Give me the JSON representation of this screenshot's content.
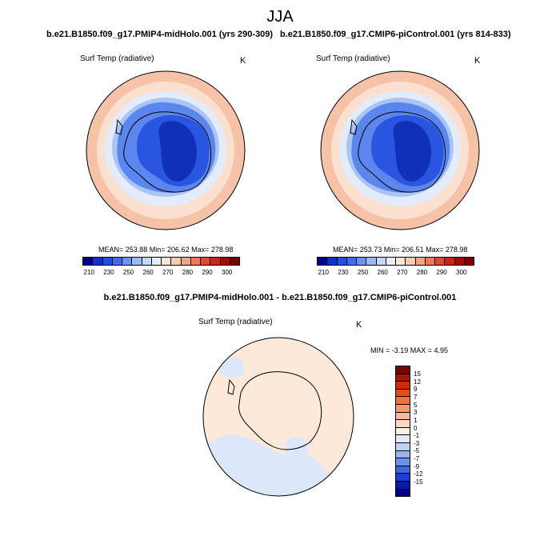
{
  "main_title": "JJA",
  "panels": [
    {
      "run_title": "b.e21.B1850.f09_g17.PMIP4-midHolo.001 (yrs 290-309)",
      "label": "Surf Temp (radiative)",
      "units": "K",
      "stats": "MEAN= 253.88  Min= 206.62  Max= 278.98"
    },
    {
      "run_title": "b.e21.B1850.f09_g17.CMIP6-piControl.001 (yrs 814-833)",
      "label": "Surf Temp (radiative)",
      "units": "K",
      "stats": "MEAN= 253.73  Min= 206.51  Max= 278.98"
    }
  ],
  "diff_panel": {
    "run_title": "b.e21.B1850.f09_g17.PMIP4-midHolo.001 - b.e21.B1850.f09_g17.CMIP6-piControl.001",
    "label": "Surf Temp (radiative)",
    "units": "K",
    "stats": "MIN =  -3.19 MAX =   4.95"
  },
  "abs_colorbar": {
    "colors": [
      "#00008b",
      "#1030c8",
      "#1f51e0",
      "#3c6ef0",
      "#6b94f5",
      "#9bb8f8",
      "#c4d6f9",
      "#e6eefc",
      "#fde6d6",
      "#fbcbb0",
      "#f5a582",
      "#ec7a58",
      "#dd4a2d",
      "#c8260f",
      "#a00e05",
      "#7a0000"
    ],
    "tick_labels": [
      "210",
      "230",
      "250",
      "260",
      "270",
      "280",
      "290",
      "300"
    ]
  },
  "diff_colorbar": {
    "colors": [
      "#7a0000",
      "#a8140a",
      "#d02a10",
      "#ea4a1c",
      "#f56e3e",
      "#f79868",
      "#f8bc96",
      "#fad8c2",
      "#fdeee3",
      "#deebfb",
      "#bcd2f6",
      "#93b3f1",
      "#6b92ea",
      "#3f66e0",
      "#1a3cd0",
      "#0a1aa8",
      "#00008b"
    ],
    "tick_labels": [
      "15",
      "12",
      "9",
      "7",
      "5",
      "3",
      "1",
      "0",
      "-1",
      "-3",
      "-5",
      "-7",
      "-9",
      "-12",
      "-15"
    ]
  },
  "map_colors": {
    "ocean_warm": "#f6c3a8",
    "ocean_mid": "#fbe0d0",
    "ring_light": "#e2ecfb",
    "ring_blue": "#aac4f6",
    "ice_mid": "#5b86ee",
    "ice_deep": "#2a55e0",
    "ice_core": "#1030b8",
    "diff_base": "#fde9da",
    "diff_cool": "#dce8fa"
  }
}
